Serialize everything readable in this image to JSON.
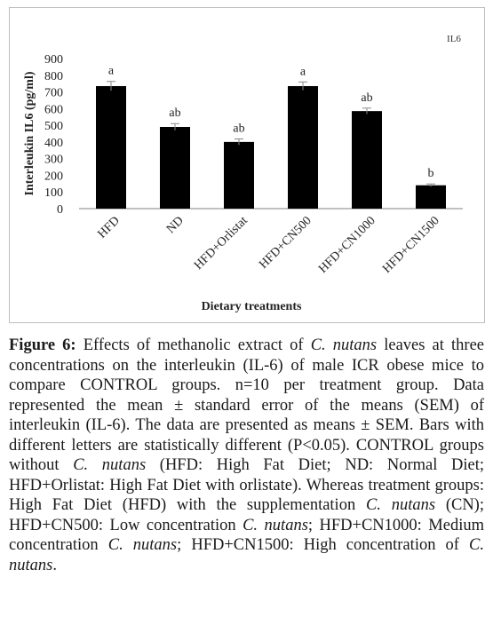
{
  "chart_data": {
    "type": "bar",
    "title": "IL6",
    "ylabel": "Interleukin IL6 (pg/ml)",
    "xlabel": "Dietary treatments",
    "ylim": [
      0,
      900
    ],
    "yticks": [
      0,
      100,
      200,
      300,
      400,
      500,
      600,
      700,
      800,
      900
    ],
    "grid": false,
    "categories": [
      "HFD",
      "ND",
      "HFD+Orlistat",
      "HFD+CN500",
      "HFD+CN1000",
      "HFD+CN1500"
    ],
    "values": [
      735,
      490,
      400,
      735,
      585,
      140
    ],
    "errors": [
      28,
      20,
      18,
      25,
      18,
      8
    ],
    "significance_letters": [
      "a",
      "ab",
      "ab",
      "a",
      "ab",
      "b"
    ],
    "bar_color": "#000000"
  },
  "caption": {
    "label": "Figure 6:",
    "text": "Effects of methanolic extract of C. nutans leaves at three concentrations on the interleukin (IL-6) of male ICR obese mice to compare CONTROL groups. n=10 per treatment group. Data represented the mean ± standard error of the means (SEM) of interleukin (IL-6). The data are presented as means ± SEM. Bars with different letters are statistically different (P<0.05). CONTROL groups without C. nutans (HFD: High Fat Diet; ND: Normal Diet; HFD+Orlistat: High Fat Diet with orlistate). Whereas treatment groups: High Fat Diet (HFD) with the supplementation C. nutans (CN); HFD+CN500: Low concentration C. nutans; HFD+CN1000: Medium concentration C. nutans; HFD+CN1500: High concentration of C. nutans.",
    "italic_terms": [
      "C. nutans"
    ]
  }
}
